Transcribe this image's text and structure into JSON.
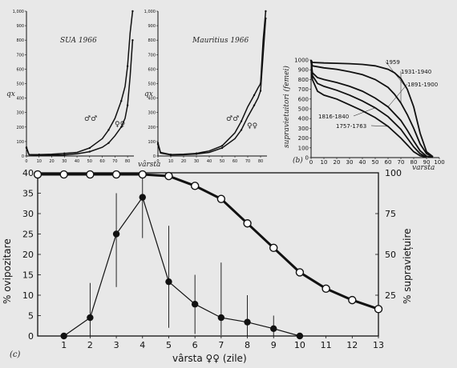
{
  "chart_data": [
    {
      "type": "line",
      "panel": "top-left",
      "annotation": "SUA 1966",
      "ylabel": "qx",
      "xlabel": "",
      "ylim": [
        0,
        1000
      ],
      "xlim": [
        0,
        85
      ],
      "y_ticks": [
        "0",
        "100",
        "200",
        "300",
        "400",
        "500",
        "600",
        "700",
        "800",
        "900",
        "1,000"
      ],
      "x_ticks": [
        "0",
        "10",
        "20",
        "30",
        "40",
        "50",
        "60",
        "70",
        "80"
      ],
      "series_labels": [
        "♂♂",
        "♀♀"
      ],
      "series": [
        {
          "x": [
            0,
            2,
            10,
            20,
            30,
            40,
            50,
            60,
            65,
            70,
            75,
            78,
            80,
            82,
            84
          ],
          "y": [
            60,
            10,
            10,
            12,
            18,
            25,
            55,
            120,
            180,
            260,
            380,
            480,
            620,
            850,
            1000
          ]
        },
        {
          "x": [
            0,
            2,
            10,
            20,
            30,
            40,
            50,
            60,
            65,
            70,
            75,
            78,
            80,
            82,
            84
          ],
          "y": [
            55,
            8,
            6,
            6,
            8,
            15,
            30,
            60,
            90,
            140,
            200,
            260,
            350,
            550,
            800
          ]
        }
      ]
    },
    {
      "type": "line",
      "panel": "top-middle",
      "annotation": "Mauritius 1966",
      "ylabel": "qx",
      "xlabel": "vârsta",
      "ylim": [
        0,
        1000
      ],
      "xlim": [
        0,
        85
      ],
      "y_ticks": [
        "0",
        "100",
        "200",
        "300",
        "400",
        "500",
        "600",
        "700",
        "800",
        "900",
        "1,000"
      ],
      "x_ticks": [
        "0",
        "10",
        "20",
        "30",
        "40",
        "50",
        "60",
        "70",
        "80"
      ],
      "series_labels": [
        "♂♂",
        "♀♀"
      ],
      "series": [
        {
          "x": [
            0,
            2,
            10,
            20,
            30,
            40,
            50,
            60,
            65,
            70,
            75,
            78,
            80,
            82,
            84
          ],
          "y": [
            90,
            25,
            10,
            12,
            18,
            35,
            70,
            160,
            240,
            340,
            420,
            470,
            500,
            800,
            1000
          ]
        },
        {
          "x": [
            0,
            2,
            10,
            20,
            30,
            40,
            50,
            60,
            65,
            70,
            75,
            78,
            80,
            82,
            84
          ],
          "y": [
            80,
            20,
            8,
            9,
            14,
            25,
            55,
            120,
            180,
            270,
            350,
            400,
            450,
            700,
            950
          ]
        }
      ]
    },
    {
      "type": "line",
      "panel": "top-right",
      "panel_letter": "(b)",
      "ylabel": "supravietuitori (femei)",
      "xlabel": "varsta",
      "ylim": [
        0,
        1000
      ],
      "xlim": [
        0,
        100
      ],
      "y_ticks": [
        "0",
        "100",
        "200",
        "300",
        "400",
        "500",
        "600",
        "700",
        "800",
        "900",
        "1000"
      ],
      "x_ticks": [
        "0",
        "10",
        "20",
        "30",
        "40",
        "50",
        "60",
        "70",
        "80",
        "90",
        "100"
      ],
      "series": [
        {
          "name": "1959",
          "x": [
            0,
            1,
            10,
            20,
            30,
            40,
            50,
            60,
            65,
            70,
            75,
            80,
            85,
            90,
            95
          ],
          "y": [
            1000,
            975,
            970,
            966,
            962,
            955,
            940,
            905,
            870,
            810,
            700,
            520,
            250,
            60,
            10
          ]
        },
        {
          "name": "1931-1940",
          "x": [
            0,
            1,
            10,
            20,
            30,
            40,
            50,
            60,
            65,
            70,
            75,
            80,
            85,
            90,
            95
          ],
          "y": [
            1000,
            940,
            920,
            905,
            880,
            850,
            800,
            720,
            650,
            560,
            440,
            300,
            140,
            40,
            5
          ]
        },
        {
          "name": "1891-1900",
          "x": [
            0,
            1,
            5,
            10,
            20,
            30,
            40,
            50,
            60,
            70,
            75,
            80,
            85,
            90,
            95
          ],
          "y": [
            1000,
            870,
            820,
            800,
            770,
            730,
            680,
            610,
            520,
            380,
            280,
            170,
            70,
            15,
            2
          ]
        },
        {
          "name": "1816-1840",
          "x": [
            0,
            1,
            5,
            10,
            20,
            30,
            40,
            50,
            60,
            70,
            75,
            80,
            85,
            90
          ],
          "y": [
            1000,
            840,
            760,
            730,
            690,
            640,
            580,
            510,
            420,
            290,
            200,
            110,
            40,
            5
          ]
        },
        {
          "name": "1757-1763",
          "x": [
            0,
            1,
            5,
            10,
            20,
            30,
            40,
            50,
            60,
            70,
            75,
            80,
            85,
            90
          ],
          "y": [
            1000,
            800,
            680,
            640,
            600,
            540,
            480,
            410,
            320,
            200,
            130,
            60,
            20,
            3
          ]
        }
      ]
    },
    {
      "type": "line",
      "panel": "bottom",
      "panel_letter": "(c)",
      "xlabel": "vârsta ♀♀ (zile)",
      "ylabel": "% ovipozitare",
      "ylabel_right": "% supraviețuire",
      "ylim": [
        0,
        40
      ],
      "ylim_right": [
        0,
        100
      ],
      "xlim": [
        0,
        13
      ],
      "y_ticks": [
        "0",
        "5",
        "10",
        "15",
        "20",
        "25",
        "30",
        "35",
        "40"
      ],
      "y_ticks_right": [
        "25",
        "50",
        "75",
        "100"
      ],
      "x_ticks": [
        "1",
        "2",
        "3",
        "4",
        "5",
        "6",
        "7",
        "8",
        "9",
        "10",
        "11",
        "12",
        "13"
      ],
      "oviposition": {
        "x": [
          1,
          2,
          3,
          4,
          5,
          6,
          7,
          8,
          9,
          10
        ],
        "y": [
          0,
          4.5,
          25,
          34,
          13.3,
          7.8,
          4.5,
          3.4,
          1.8,
          0
        ],
        "err_low": [
          0,
          0,
          12,
          24,
          2,
          0.5,
          0.2,
          0,
          0,
          0
        ],
        "err_high": [
          0,
          13,
          35,
          40,
          27,
          15,
          18,
          10,
          5,
          0
        ]
      },
      "survival": {
        "x": [
          0,
          1,
          2,
          3,
          4,
          5,
          6,
          7,
          8,
          9,
          10,
          11,
          12,
          13
        ],
        "y": [
          99,
          99,
          99,
          99,
          99,
          98,
          92,
          84,
          69,
          54,
          39,
          29,
          22,
          16.5
        ]
      }
    }
  ]
}
